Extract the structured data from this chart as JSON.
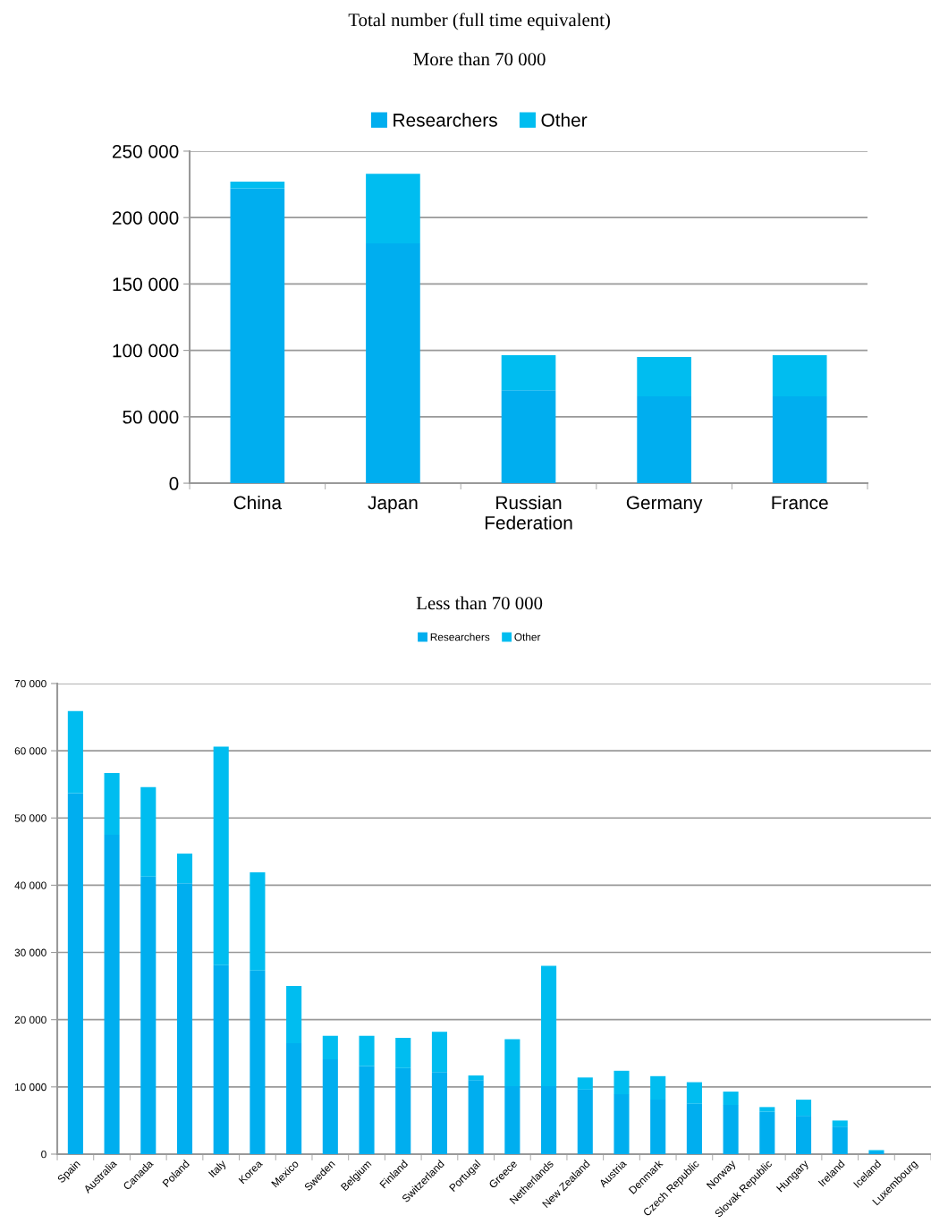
{
  "chart_data": [
    {
      "type": "bar",
      "title": "Total number (full time equivalent)",
      "subtitle": "More than 70 000",
      "stacked": true,
      "legend": "top",
      "grid": "y",
      "categories": [
        "China",
        "Japan",
        "Russian\nFederation",
        "Germany",
        "France"
      ],
      "series": [
        {
          "name": "Researchers",
          "color": "#00aeef",
          "values": [
            222000,
            180500,
            70000,
            65400,
            65400
          ]
        },
        {
          "name": "Other",
          "color": "#00bdf0",
          "values": [
            5000,
            52500,
            26400,
            29600,
            31000
          ]
        }
      ],
      "ylim": [
        0,
        250000
      ],
      "yticks": [
        0,
        {
          "value": 50000,
          "label": "50 000"
        },
        {
          "value": 100000,
          "label": "100 000"
        },
        {
          "value": 150000,
          "label": "150 000"
        },
        {
          "value": 200000,
          "label": "200 000"
        },
        {
          "value": 250000,
          "label": "250 000"
        }
      ]
    },
    {
      "type": "bar",
      "subtitle": "Less than 70 000",
      "stacked": true,
      "legend": "top",
      "grid": "y",
      "categories": [
        "Spain",
        "Australia",
        "Canada",
        "Poland",
        "Italy",
        "Korea",
        "Mexico",
        "Sweden",
        "Belgium",
        "Finland",
        "Switzerland",
        "Portugal",
        "Greece",
        "Netherlands",
        "New Zealand",
        "Austria",
        "Denmark",
        "Czech Republic",
        "Norway",
        "Slovak Republic",
        "Hungary",
        "Ireland",
        "Iceland",
        "Luxembourg"
      ],
      "series": [
        {
          "name": "Researchers",
          "color": "#00aeef",
          "values": [
            53700,
            47500,
            41300,
            40300,
            28100,
            27300,
            16500,
            14100,
            13100,
            12800,
            12200,
            11000,
            10100,
            10100,
            9600,
            8900,
            8100,
            7500,
            7300,
            6300,
            5700,
            4100,
            400,
            0
          ]
        },
        {
          "name": "Other",
          "color": "#00bdf0",
          "values": [
            12200,
            9200,
            13300,
            4400,
            32500,
            14600,
            8500,
            3500,
            4500,
            4500,
            6000,
            700,
            7000,
            17900,
            1800,
            3500,
            3500,
            3200,
            2000,
            700,
            2400,
            900,
            200,
            0
          ]
        }
      ],
      "ylim": [
        0,
        70000
      ],
      "yticks": [
        0,
        {
          "value": 10000,
          "label": "10 000"
        },
        {
          "value": 20000,
          "label": "20 000"
        },
        {
          "value": 30000,
          "label": "30 000"
        },
        {
          "value": 40000,
          "label": "40 000"
        },
        {
          "value": 50000,
          "label": "50 000"
        },
        {
          "value": 60000,
          "label": "60 000"
        },
        {
          "value": 70000,
          "label": "70 000"
        }
      ]
    }
  ]
}
